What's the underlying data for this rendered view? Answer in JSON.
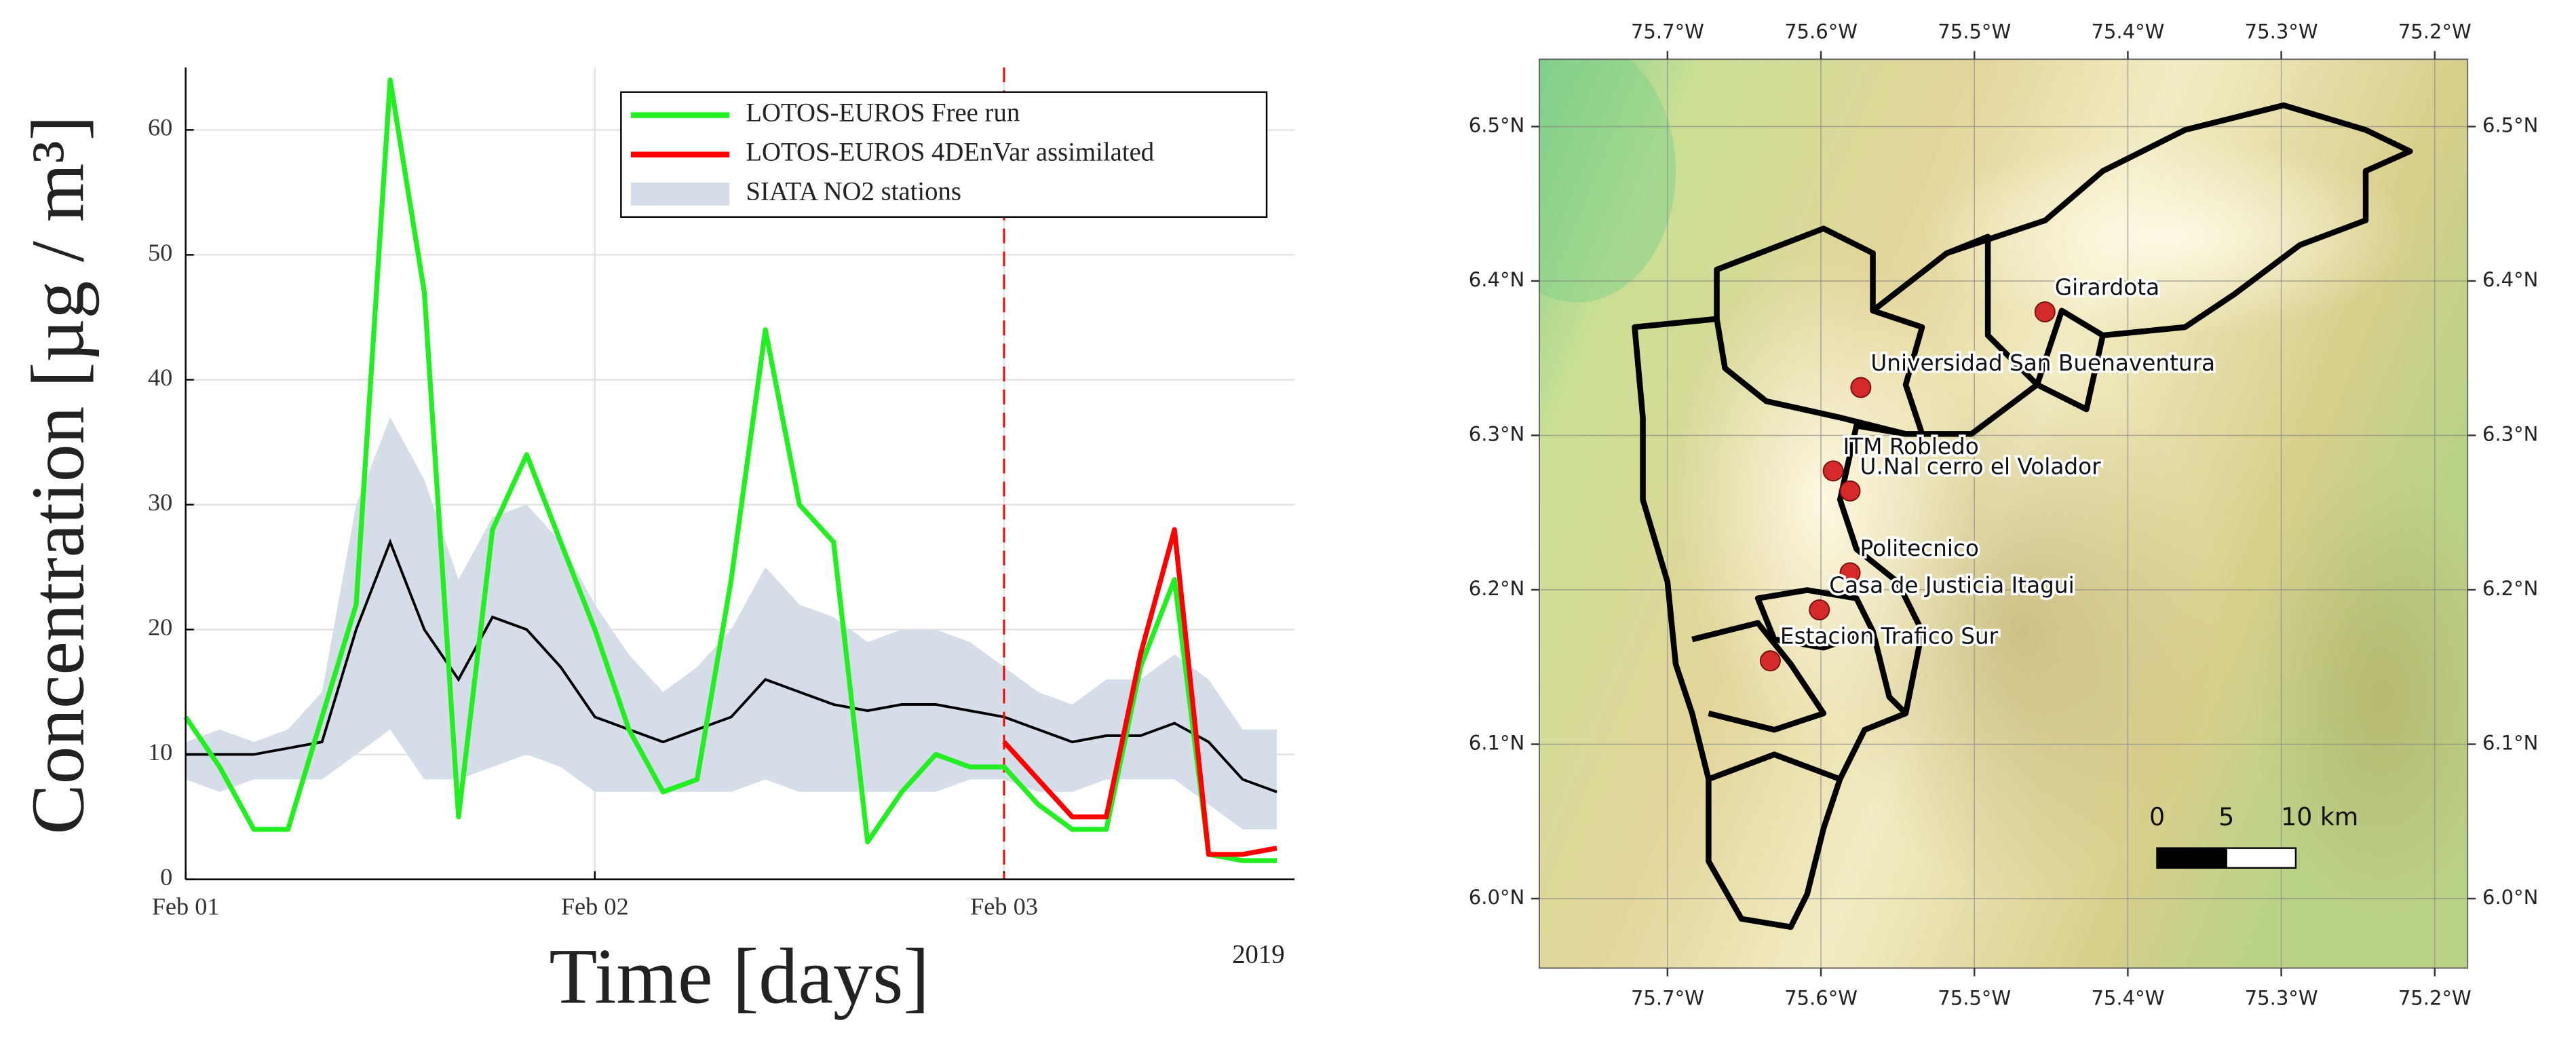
{
  "chart_data": [
    {
      "type": "line",
      "xlabel": "Time [days]",
      "ylabel": "Concentration [µg / m³]",
      "annotation": "2019",
      "x": [
        0,
        0.0833,
        0.1667,
        0.25,
        0.3333,
        0.4167,
        0.5,
        0.5833,
        0.6667,
        0.75,
        0.8333,
        0.9167,
        1,
        1.0833,
        1.1667,
        1.25,
        1.3333,
        1.4167,
        1.5,
        1.5833,
        1.6667,
        1.75,
        1.8333,
        1.9167,
        2,
        2.0833,
        2.1667,
        2.25,
        2.3333,
        2.4167,
        2.5,
        2.5833,
        2.6667
      ],
      "xlim": [
        0,
        2.71
      ],
      "xticks": [
        {
          "value": 0,
          "label": "Feb 01"
        },
        {
          "value": 1,
          "label": "Feb 02"
        },
        {
          "value": 2,
          "label": "Feb 03"
        }
      ],
      "ylim": [
        0,
        65
      ],
      "yticks": [
        0,
        10,
        20,
        30,
        40,
        50,
        60
      ],
      "grid": true,
      "legend": "upper right",
      "vline": {
        "x": 2,
        "color": "#ff0000"
      },
      "series": [
        {
          "name": "LOTOS-EUROS Free run",
          "color": "#22ee22",
          "values": [
            13,
            9,
            4,
            4,
            13,
            22,
            64,
            47,
            5,
            28,
            34,
            27,
            20,
            12,
            7,
            8,
            24,
            44,
            30,
            27,
            3,
            7,
            10,
            9,
            9,
            6,
            4,
            4,
            17,
            24,
            2,
            1.5,
            1.5
          ]
        },
        {
          "name": "LOTOS-EUROS 4DEnVar assimilated",
          "color": "#ff0000",
          "values": [
            null,
            null,
            null,
            null,
            null,
            null,
            null,
            null,
            null,
            null,
            null,
            null,
            null,
            null,
            null,
            null,
            null,
            null,
            null,
            null,
            null,
            null,
            null,
            null,
            11,
            8,
            5,
            5,
            18,
            28,
            2,
            2,
            2.5
          ]
        },
        {
          "name": "SIATA NO2 stations",
          "color": "#d5dde8",
          "line_color": "#000000",
          "values": [
            10,
            10,
            10,
            10.5,
            11,
            20,
            27,
            20,
            16,
            21,
            20,
            17,
            13,
            12,
            11,
            12,
            13,
            16,
            15,
            14,
            13.5,
            14,
            14,
            13.5,
            13,
            12,
            11,
            11.5,
            11.5,
            12.5,
            11,
            8,
            7
          ],
          "upper": [
            11,
            12,
            11,
            12,
            15,
            30,
            37,
            32,
            24,
            29,
            30,
            27,
            22,
            18,
            15,
            17,
            20,
            25,
            22,
            21,
            19,
            20,
            20,
            19,
            17,
            15,
            14,
            16,
            16,
            18,
            16,
            12,
            12
          ],
          "lower": [
            8,
            7,
            8,
            8,
            8,
            10,
            12,
            8,
            8,
            9,
            10,
            9,
            7,
            7,
            7,
            7,
            7,
            8,
            7,
            7,
            7,
            7,
            7,
            8,
            8,
            7,
            7,
            8,
            8,
            8,
            6,
            4,
            4
          ]
        }
      ]
    },
    {
      "type": "map",
      "xlim": [
        -75.7835,
        -75.1786
      ],
      "ylim": [
        5.955,
        6.5436
      ],
      "xticks": [
        {
          "value": -75.7,
          "label": "75.7°W"
        },
        {
          "value": -75.6,
          "label": "75.6°W"
        },
        {
          "value": -75.5,
          "label": "75.5°W"
        },
        {
          "value": -75.4,
          "label": "75.4°W"
        },
        {
          "value": -75.3,
          "label": "75.3°W"
        },
        {
          "value": -75.2,
          "label": "75.2°W"
        }
      ],
      "yticks": [
        {
          "value": 6.0,
          "label": "6.0°N"
        },
        {
          "value": 6.1,
          "label": "6.1°N"
        },
        {
          "value": 6.2,
          "label": "6.2°N"
        },
        {
          "value": 6.3,
          "label": "6.3°N"
        },
        {
          "value": 6.4,
          "label": "6.4°N"
        },
        {
          "value": 6.5,
          "label": "6.5°N"
        }
      ],
      "grid": true,
      "color": "#d42a2a",
      "points": {
        "labels": [
          "Girardota",
          "Universidad San Buenaventura",
          "ITM Robledo",
          "U.Nal cerro el Volador",
          "Politecnico",
          "Casa de Justicia Itagui",
          "Estacion Trafico Sur"
        ],
        "x": [
          -75.454,
          -75.574,
          -75.592,
          -75.581,
          -75.581,
          -75.601,
          -75.633
        ],
        "y": [
          6.38,
          6.331,
          6.277,
          6.264,
          6.211,
          6.187,
          6.154
        ]
      },
      "scalebar_ticks": [
        0,
        5,
        {
          "value": 10,
          "label": "10 km"
        }
      ]
    }
  ]
}
